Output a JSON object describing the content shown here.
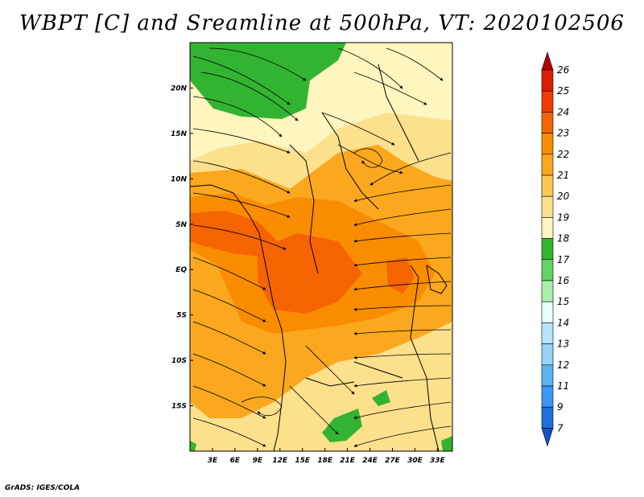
{
  "title": "WBPT [C] and Sreamline at 500hPa, VT: 2020102506",
  "footer": "GrADS: IGES/COLA",
  "map": {
    "lon_range": [
      0,
      35
    ],
    "lat_range": [
      -20,
      25
    ],
    "lon_ticks": [
      "3E",
      "6E",
      "9E",
      "12E",
      "15E",
      "18E",
      "21E",
      "24E",
      "27E",
      "30E",
      "33E"
    ],
    "lon_tick_values": [
      3,
      6,
      9,
      12,
      15,
      18,
      21,
      24,
      27,
      30,
      33
    ],
    "lat_ticks": [
      "20N",
      "15N",
      "10N",
      "5N",
      "EQ",
      "5S",
      "10S",
      "15S"
    ],
    "lat_tick_values": [
      20,
      15,
      10,
      5,
      0,
      -5,
      -10,
      -15
    ]
  },
  "colorbar": {
    "labels": [
      "26",
      "25",
      "24",
      "23",
      "22",
      "21",
      "20",
      "19",
      "18",
      "17",
      "16",
      "15",
      "14",
      "13",
      "12",
      "11",
      "9",
      "7"
    ],
    "colors": [
      "#b40000",
      "#dc1e00",
      "#f03c00",
      "#f56400",
      "#fa8c00",
      "#fba81e",
      "#fcc850",
      "#fde08c",
      "#fff5be",
      "#32b432",
      "#64d264",
      "#aaf0aa",
      "#e6ffff",
      "#b4e6ff",
      "#96d2fa",
      "#5ab4f0",
      "#3c96f5",
      "#1e6edc",
      "#1450c8"
    ]
  }
}
